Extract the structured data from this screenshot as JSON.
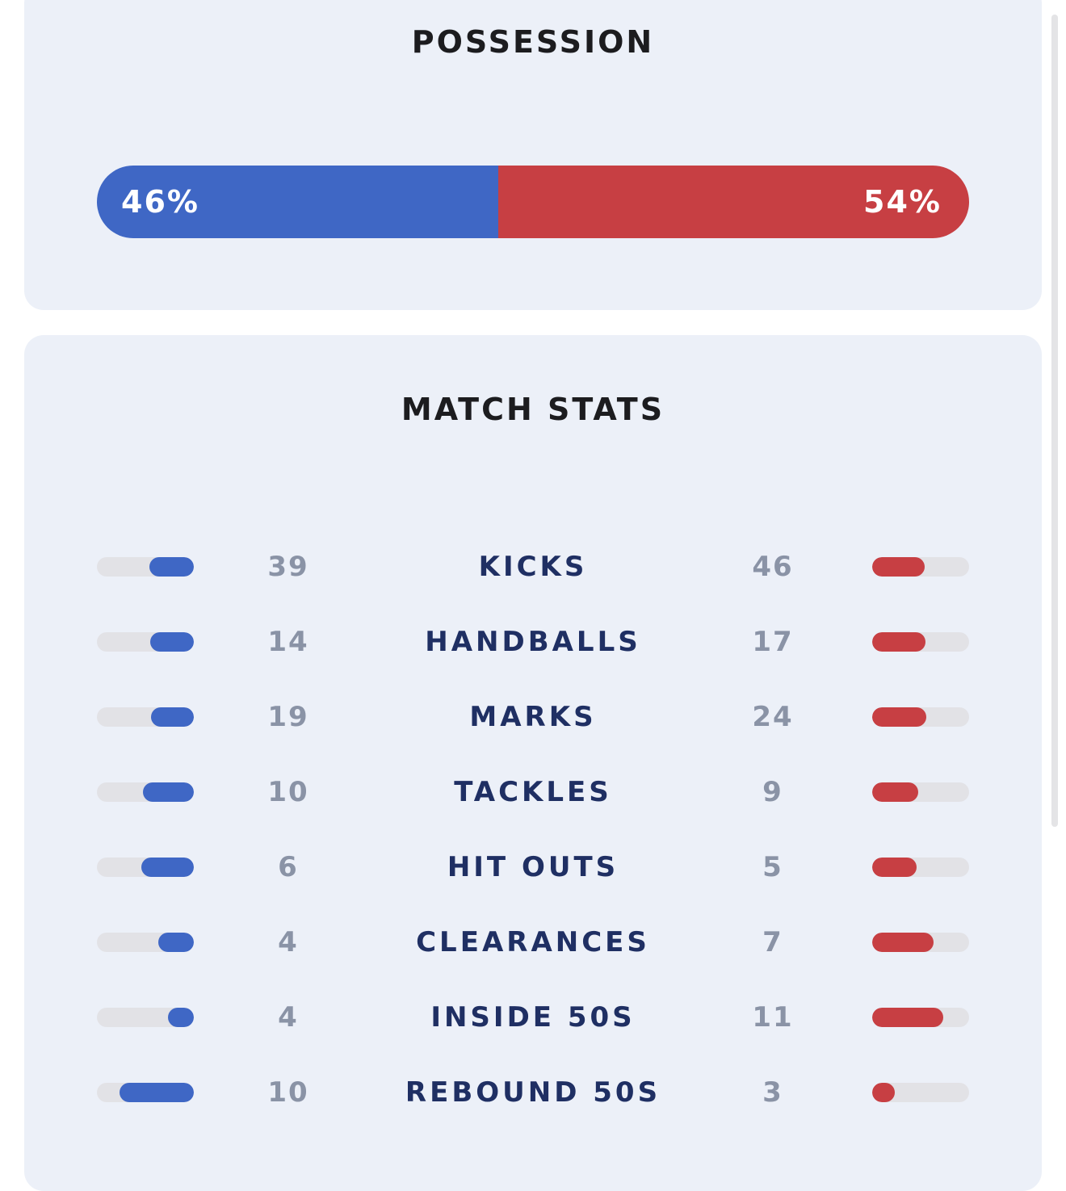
{
  "possession": {
    "title": "POSSESSION",
    "home_label": "46%",
    "away_label": "54%",
    "home_share": 46,
    "away_share": 54,
    "home_color": "#3f67c5",
    "away_color": "#c73f43"
  },
  "match_stats": {
    "title": "MATCH STATS",
    "rows": [
      {
        "label": "KICKS",
        "home": "39",
        "away": "46"
      },
      {
        "label": "HANDBALLS",
        "home": "14",
        "away": "17"
      },
      {
        "label": "MARKS",
        "home": "19",
        "away": "24"
      },
      {
        "label": "TACKLES",
        "home": "10",
        "away": "9"
      },
      {
        "label": "HIT OUTS",
        "home": "6",
        "away": "5"
      },
      {
        "label": "CLEARANCES",
        "home": "4",
        "away": "7"
      },
      {
        "label": "INSIDE 50S",
        "home": "4",
        "away": "11"
      },
      {
        "label": "REBOUND 50S",
        "home": "10",
        "away": "3"
      }
    ]
  }
}
